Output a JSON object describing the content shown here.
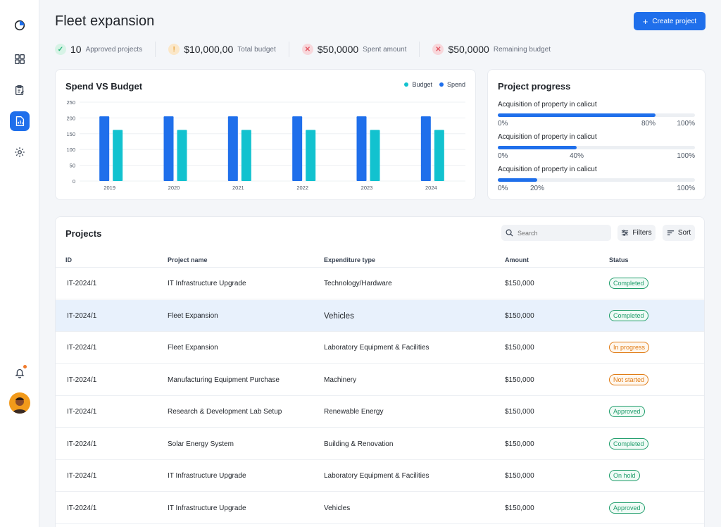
{
  "page": {
    "title": "Fleet expansion",
    "create_label": "Create project",
    "create_icon": "plus-icon"
  },
  "sidebar": {
    "items": [
      {
        "name": "logo",
        "icon": "pie-logo-icon"
      },
      {
        "name": "dashboard",
        "icon": "grid-icon"
      },
      {
        "name": "tasks",
        "icon": "clipboard-edit-icon"
      },
      {
        "name": "reports",
        "icon": "report-icon",
        "active": true
      },
      {
        "name": "settings",
        "icon": "gear-icon"
      }
    ],
    "bottom": [
      {
        "name": "notifications",
        "icon": "bell-icon"
      },
      {
        "name": "profile",
        "icon": "avatar"
      }
    ]
  },
  "stats": [
    {
      "value": "10",
      "label": "Approved projects",
      "status": "success",
      "icon": "check-icon",
      "color": "#29b67c"
    },
    {
      "value": "$10,000,00",
      "label": "Total budget",
      "status": "warning",
      "icon": "exclamation-icon",
      "color": "#e8a33b"
    },
    {
      "value": "$50,0000",
      "label": "Spent amount",
      "status": "error",
      "icon": "x-icon",
      "color": "#e25a66"
    },
    {
      "value": "$50,0000",
      "label": "Remaining budget",
      "status": "error",
      "icon": "x-icon",
      "color": "#e25a66"
    }
  ],
  "spend_card": {
    "title": "Spend VS Budget",
    "legend": [
      {
        "label": "Budget",
        "color": "#12c2cf"
      },
      {
        "label": "Spend",
        "color": "#1f6feb"
      }
    ]
  },
  "chart_data": {
    "type": "bar",
    "title": "Spend VS Budget",
    "categories": [
      "2019",
      "2020",
      "2021",
      "2022",
      "2023",
      "2024"
    ],
    "series": [
      {
        "name": "Spend",
        "color": "#1f6feb",
        "values": [
          205,
          205,
          205,
          205,
          205,
          205
        ]
      },
      {
        "name": "Budget",
        "color": "#12c2cf",
        "values": [
          162,
          162,
          162,
          162,
          162,
          162
        ]
      }
    ],
    "yticks": [
      "0",
      "50",
      "100",
      "150",
      "200",
      "250"
    ],
    "ylim": [
      0,
      250
    ],
    "grid": true,
    "legend_position": "top-right"
  },
  "progress_card": {
    "title": "Project progress",
    "items": [
      {
        "label": "Acquisition of property in calicut",
        "min": "0%",
        "value": 0.8,
        "value_label": "80%",
        "max": "100%"
      },
      {
        "label": "Acquisition of property in calicut",
        "min": "0%",
        "value": 0.4,
        "value_label": "40%",
        "max": "100%"
      },
      {
        "label": "Acquisition of property in calicut",
        "min": "0%",
        "value": 0.2,
        "value_label": "20%",
        "max": "100%"
      }
    ]
  },
  "projects": {
    "title": "Projects",
    "search_placeholder": "Search",
    "filters_label": "Filters",
    "sort_label": "Sort",
    "columns": [
      "ID",
      "Project name",
      "Expenditure type",
      "Amount",
      "Status"
    ],
    "rows": [
      {
        "id": "IT-2024/1",
        "name": "IT Infrastructure Upgrade",
        "type": "Technology/Hardware",
        "amount": "$150,000",
        "status": "Completed",
        "tone": "green",
        "selected": false
      },
      {
        "id": "IT-2024/1",
        "name": "Fleet Expansion",
        "type": "Vehicles",
        "amount": "$150,000",
        "status": "Completed",
        "tone": "green",
        "selected": true
      },
      {
        "id": "IT-2024/1",
        "name": "Fleet Expansion",
        "type": "Laboratory Equipment & Facilities",
        "amount": "$150,000",
        "status": "In progress",
        "tone": "orange",
        "selected": false
      },
      {
        "id": "IT-2024/1",
        "name": "Manufacturing Equipment Purchase",
        "type": "Machinery",
        "amount": "$150,000",
        "status": "Not started",
        "tone": "orange",
        "selected": false
      },
      {
        "id": "IT-2024/1",
        "name": "Research & Development Lab Setup",
        "type": "Renewable Energy",
        "amount": "$150,000",
        "status": "Approved",
        "tone": "green",
        "selected": false
      },
      {
        "id": "IT-2024/1",
        "name": "Solar Energy System",
        "type": "Building & Renovation",
        "amount": "$150,000",
        "status": "Completed",
        "tone": "green",
        "selected": false
      },
      {
        "id": "IT-2024/1",
        "name": "IT Infrastructure Upgrade",
        "type": "Laboratory Equipment & Facilities",
        "amount": "$150,000",
        "status": "On hold",
        "tone": "green",
        "selected": false
      },
      {
        "id": "IT-2024/1",
        "name": "IT Infrastructure Upgrade",
        "type": "Vehicles",
        "amount": "$150,000",
        "status": "Approved",
        "tone": "green",
        "selected": false
      }
    ]
  }
}
